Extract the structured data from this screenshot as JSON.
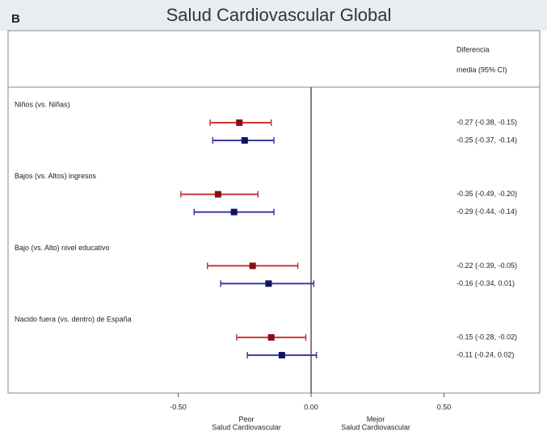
{
  "chart_data": {
    "type": "forest",
    "panel_label": "B",
    "title": "Salud Cardiovascular Global",
    "column_header": [
      "Diferencia",
      "media (95% CI)"
    ],
    "categories": [
      "Niños (vs. Niñas)",
      "Bajos (vs. Altos) ingresos",
      "Bajo (vs. Alto) nivel educativo",
      "Nacido fuera (vs. dentro) de España"
    ],
    "series": [
      {
        "color": "#c8363a",
        "values": [
          -0.27,
          -0.35,
          -0.22,
          -0.15
        ],
        "lo": [
          -0.38,
          -0.49,
          -0.39,
          -0.28
        ],
        "hi": [
          -0.15,
          -0.2,
          -0.05,
          -0.02
        ],
        "value_labels": [
          "-0.27 (-0.38, -0.15)",
          "-0.35 (-0.49, -0.20)",
          "-0.22 (-0.39, -0.05)",
          "-0.15 (-0.28, -0.02)"
        ]
      },
      {
        "color": "#3a3aa8",
        "values": [
          -0.25,
          -0.29,
          -0.16,
          -0.11
        ],
        "lo": [
          -0.37,
          -0.44,
          -0.34,
          -0.24
        ],
        "hi": [
          -0.14,
          -0.14,
          0.01,
          0.02
        ],
        "value_labels": [
          "-0.25 (-0.37, -0.14)",
          "-0.29 (-0.44, -0.14)",
          "-0.16 (-0.34, 0.01)",
          "-0.11 (-0.24, 0.02)"
        ]
      }
    ],
    "xlim": [
      -1.14,
      0.86
    ],
    "xticks": [
      {
        "value": -0.5,
        "label": "-0.50"
      },
      {
        "value": 0,
        "label": "0.00"
      },
      {
        "value": 0.5,
        "label": "0.50"
      }
    ],
    "x_annotations": [
      [
        "Peor",
        "Salud Cardiovascular"
      ],
      [
        "Mejor",
        "Salud Cardiovascular"
      ]
    ]
  }
}
